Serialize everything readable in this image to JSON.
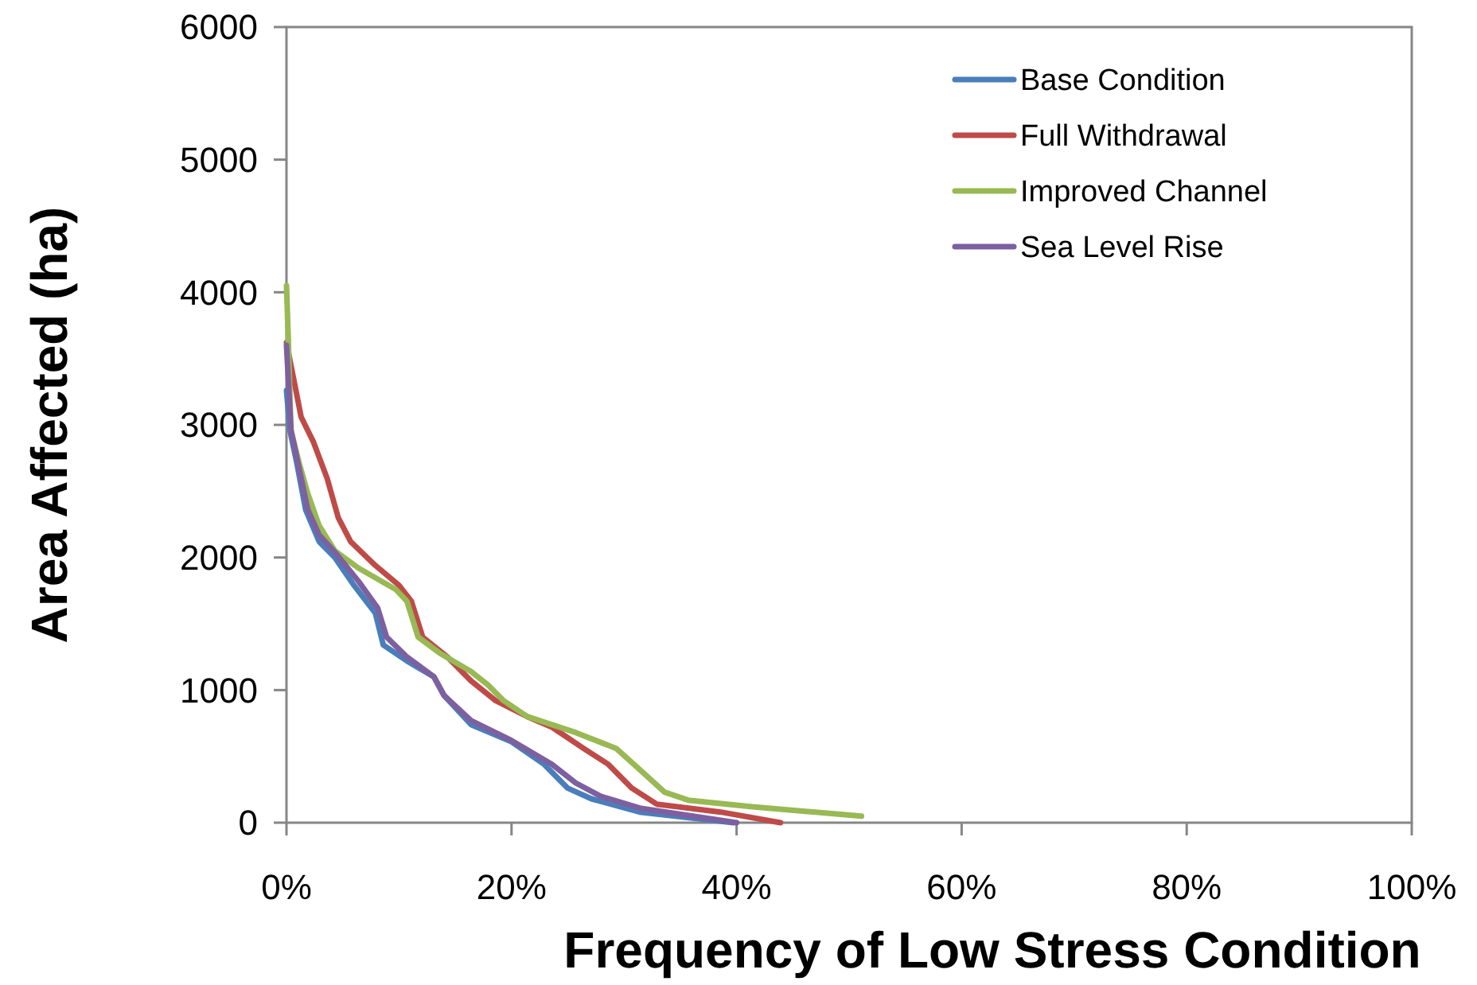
{
  "chart_data": {
    "type": "line",
    "xlabel": "Frequency of Low Stress Condition",
    "ylabel": "Area Affected (ha)",
    "xlim": [
      0,
      100
    ],
    "xticks": [
      {
        "value": 0,
        "label": "0%"
      },
      {
        "value": 20,
        "label": "20%"
      },
      {
        "value": 40,
        "label": "40%"
      },
      {
        "value": 60,
        "label": "60%"
      },
      {
        "value": 80,
        "label": "80%"
      },
      {
        "value": 100,
        "label": "100%"
      }
    ],
    "ylim": [
      0,
      6000
    ],
    "yticks": [
      0,
      1000,
      2000,
      3000,
      4000,
      5000,
      6000
    ],
    "grid": false,
    "legend": "top right",
    "marker": "none",
    "line_style": "solid",
    "series": [
      {
        "name": "Base Condition",
        "color": "#4a7ebb",
        "x": [
          0,
          0.3,
          0.9,
          1.7,
          2.9,
          4.3,
          6,
          7.9,
          8.6,
          10.7,
          13.1,
          14,
          16.4,
          20,
          22.9,
          25,
          27.1,
          31.4,
          39.7
        ],
        "values": [
          3260,
          2960,
          2720,
          2360,
          2120,
          2000,
          1790,
          1580,
          1340,
          1220,
          1100,
          960,
          740,
          610,
          440,
          260,
          180,
          80,
          0
        ]
      },
      {
        "name": "Full Withdrawal",
        "color": "#be4b48",
        "x": [
          0,
          0.7,
          1.3,
          2.4,
          3.6,
          4.6,
          5.7,
          7.9,
          10,
          11.1,
          12.1,
          14.3,
          16.4,
          18.6,
          21.4,
          23.6,
          26.4,
          28.6,
          30.7,
          32.9,
          38.6,
          43.9
        ],
        "values": [
          3620,
          3320,
          3060,
          2870,
          2600,
          2300,
          2120,
          1940,
          1790,
          1670,
          1400,
          1250,
          1070,
          920,
          800,
          720,
          560,
          440,
          260,
          140,
          80,
          0
        ]
      },
      {
        "name": "Improved Channel",
        "color": "#98b954",
        "x": [
          0,
          0.15,
          0.4,
          1.1,
          1.9,
          2.9,
          4.3,
          6.4,
          9.7,
          10.7,
          11.7,
          13.6,
          16.4,
          17.9,
          19.3,
          21.4,
          25.7,
          29.3,
          31.4,
          33.6,
          35.7,
          41.4,
          51.1
        ],
        "values": [
          4050,
          3680,
          2960,
          2720,
          2480,
          2240,
          2050,
          1920,
          1760,
          1670,
          1400,
          1280,
          1140,
          1040,
          920,
          800,
          680,
          560,
          400,
          230,
          170,
          120,
          50
        ]
      },
      {
        "name": "Sea Level Rise",
        "color": "#7d60a0",
        "x": [
          0,
          0.4,
          1,
          1.9,
          2.9,
          4.3,
          6.4,
          8.1,
          8.9,
          10.7,
          13.1,
          14,
          16.4,
          20,
          23.6,
          25.7,
          27.9,
          31.4,
          40
        ],
        "values": [
          3600,
          2960,
          2720,
          2360,
          2170,
          2040,
          1820,
          1620,
          1400,
          1250,
          1100,
          960,
          770,
          620,
          440,
          300,
          200,
          110,
          0
        ]
      }
    ]
  }
}
